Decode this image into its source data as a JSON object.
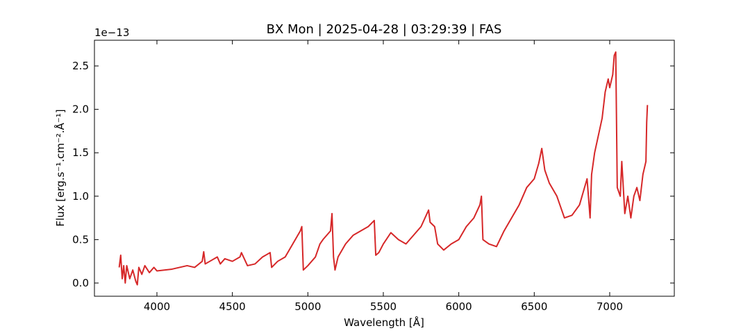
{
  "chart_data": {
    "type": "line",
    "title": "BX Mon | 2025-04-28 | 03:29:39 | FAS",
    "x_label": "Wavelength [Å]",
    "y_label": "Flux [erg.s⁻¹.cm⁻².Å⁻¹]",
    "y_offset_label": "1e−13",
    "xlim": [
      3586,
      7428
    ],
    "ylim": [
      -0.152,
      2.796
    ],
    "xticks": [
      4000,
      4500,
      5000,
      5500,
      6000,
      6500,
      7000
    ],
    "yticks": [
      {
        "value": 0,
        "label": "0.0"
      },
      0.5,
      {
        "value": 1,
        "label": "1.0"
      },
      1.5,
      {
        "value": 2,
        "label": "2.0"
      },
      2.5
    ],
    "grid": false,
    "series": [
      {
        "color": "#d62728",
        "x": [
          3750,
          3760,
          3770,
          3780,
          3790,
          3800,
          3820,
          3840,
          3860,
          3870,
          3880,
          3900,
          3920,
          3950,
          3980,
          4000,
          4050,
          4100,
          4150,
          4200,
          4250,
          4300,
          4310,
          4320,
          4350,
          4400,
          4420,
          4450,
          4500,
          4550,
          4560,
          4600,
          4650,
          4700,
          4750,
          4760,
          4800,
          4850,
          4900,
          4950,
          4960,
          4970,
          5000,
          5050,
          5080,
          5100,
          5150,
          5160,
          5170,
          5180,
          5200,
          5250,
          5300,
          5350,
          5400,
          5440,
          5450,
          5470,
          5500,
          5550,
          5600,
          5650,
          5700,
          5750,
          5800,
          5810,
          5840,
          5860,
          5900,
          5950,
          6000,
          6050,
          6100,
          6140,
          6150,
          6160,
          6200,
          6250,
          6300,
          6350,
          6400,
          6450,
          6500,
          6530,
          6550,
          6570,
          6600,
          6650,
          6700,
          6750,
          6800,
          6850,
          6870,
          6880,
          6900,
          6950,
          6970,
          6990,
          7000,
          7020,
          7030,
          7040,
          7050,
          7070,
          7080,
          7100,
          7120,
          7140,
          7160,
          7180,
          7200,
          7220,
          7240,
          7245,
          7250
        ],
        "values": [
          0.18,
          0.32,
          0.05,
          0.2,
          0.0,
          0.2,
          0.05,
          0.15,
          0.02,
          -0.02,
          0.18,
          0.1,
          0.2,
          0.12,
          0.18,
          0.14,
          0.15,
          0.16,
          0.18,
          0.2,
          0.18,
          0.25,
          0.36,
          0.22,
          0.25,
          0.3,
          0.22,
          0.28,
          0.25,
          0.3,
          0.35,
          0.2,
          0.22,
          0.3,
          0.35,
          0.18,
          0.25,
          0.3,
          0.45,
          0.6,
          0.65,
          0.15,
          0.2,
          0.3,
          0.45,
          0.5,
          0.6,
          0.8,
          0.3,
          0.15,
          0.3,
          0.45,
          0.55,
          0.6,
          0.65,
          0.72,
          0.32,
          0.35,
          0.45,
          0.58,
          0.5,
          0.45,
          0.55,
          0.65,
          0.84,
          0.7,
          0.65,
          0.45,
          0.38,
          0.45,
          0.5,
          0.65,
          0.75,
          0.9,
          1.0,
          0.5,
          0.45,
          0.42,
          0.6,
          0.75,
          0.9,
          1.1,
          1.2,
          1.38,
          1.55,
          1.3,
          1.15,
          1.0,
          0.75,
          0.78,
          0.9,
          1.2,
          0.75,
          1.25,
          1.5,
          1.9,
          2.2,
          2.35,
          2.25,
          2.4,
          2.62,
          2.66,
          1.1,
          1.0,
          1.4,
          0.8,
          1.0,
          0.75,
          1.0,
          1.1,
          0.95,
          1.25,
          1.4,
          1.85,
          2.05
        ]
      }
    ]
  }
}
